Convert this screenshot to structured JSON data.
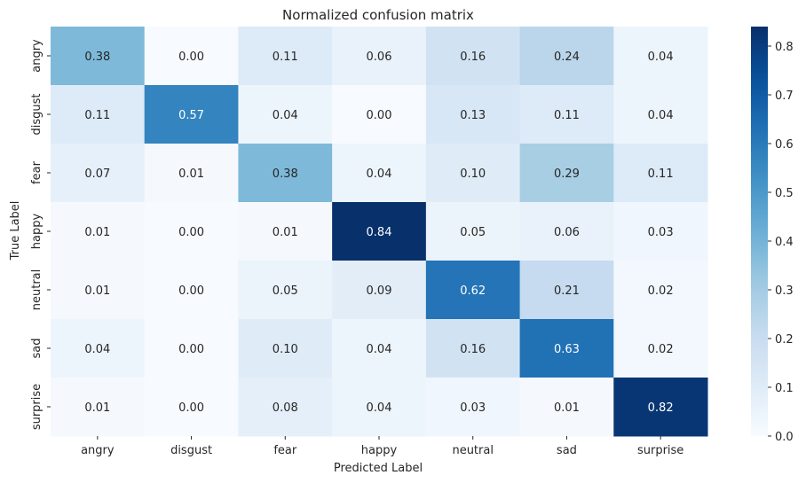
{
  "chart_data": {
    "type": "heatmap",
    "title": "Normalized confusion matrix",
    "xlabel": "Predicted Label",
    "ylabel": "True Label",
    "x_categories": [
      "angry",
      "disgust",
      "fear",
      "happy",
      "neutral",
      "sad",
      "surprise"
    ],
    "y_categories": [
      "angry",
      "disgust",
      "fear",
      "happy",
      "neutral",
      "sad",
      "surprise"
    ],
    "values": [
      [
        0.38,
        0.0,
        0.11,
        0.06,
        0.16,
        0.24,
        0.04
      ],
      [
        0.11,
        0.57,
        0.04,
        0.0,
        0.13,
        0.11,
        0.04
      ],
      [
        0.07,
        0.01,
        0.38,
        0.04,
        0.1,
        0.29,
        0.11
      ],
      [
        0.01,
        0.0,
        0.01,
        0.84,
        0.05,
        0.06,
        0.03
      ],
      [
        0.01,
        0.0,
        0.05,
        0.09,
        0.62,
        0.21,
        0.02
      ],
      [
        0.04,
        0.0,
        0.1,
        0.04,
        0.16,
        0.63,
        0.02
      ],
      [
        0.01,
        0.0,
        0.08,
        0.04,
        0.03,
        0.01,
        0.82
      ]
    ],
    "value_format": "0.00",
    "colormap": "Blues",
    "color_range": [
      0.0,
      0.84
    ],
    "colorbar_ticks": [
      "0.0",
      "0.1",
      "0.2",
      "0.3",
      "0.4",
      "0.5",
      "0.6",
      "0.7",
      "0.8"
    ],
    "colorbar_tick_values": [
      0.0,
      0.1,
      0.2,
      0.3,
      0.4,
      0.5,
      0.6,
      0.7,
      0.8
    ],
    "colorbar_placement": "right",
    "grid": false,
    "colors": {
      "low": "#f7fbff",
      "high": "#08306b",
      "text_dark": "#262626",
      "text_light": "#ffffff"
    }
  }
}
